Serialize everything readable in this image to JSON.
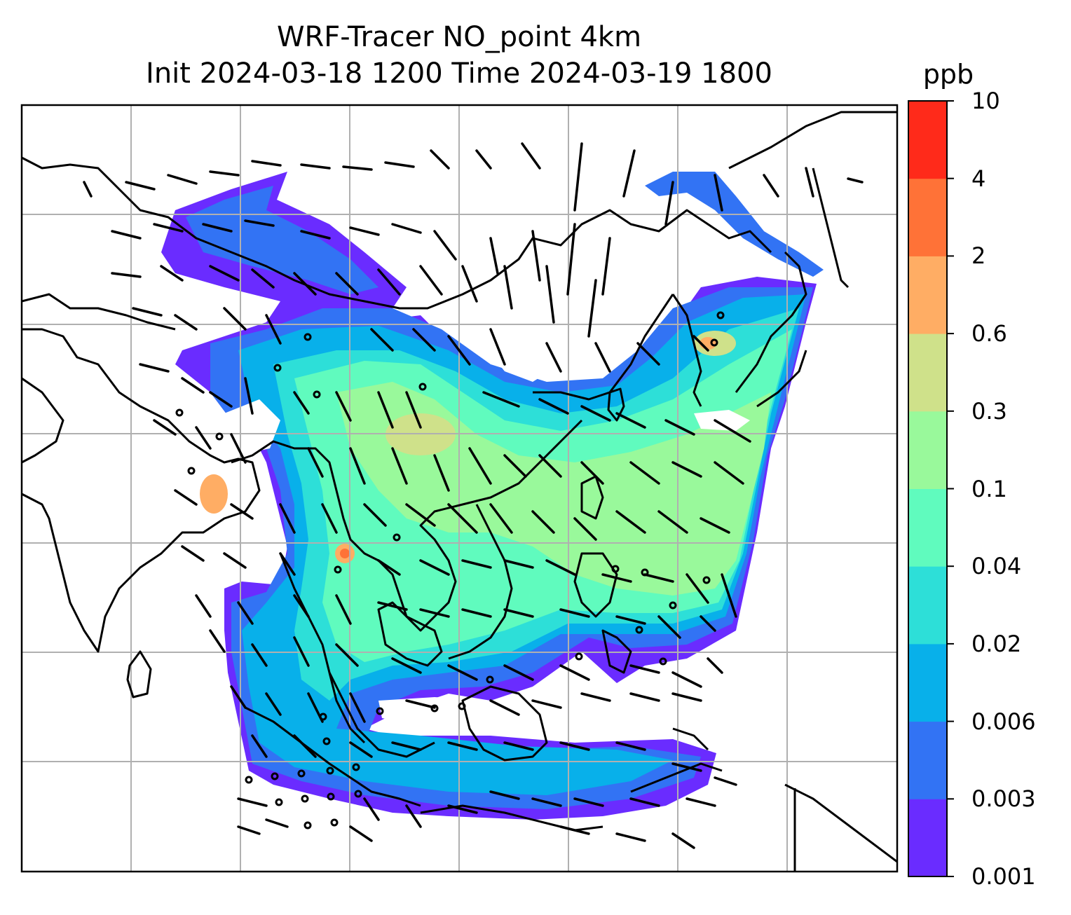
{
  "title": {
    "line1": "WRF-Tracer NO_point 4km",
    "line2": "Init 2024-03-18 1200 Time 2024-03-19 1800"
  },
  "colorbar": {
    "unit": "ppb",
    "levels": [
      "0.001",
      "0.003",
      "0.006",
      "0.02",
      "0.04",
      "0.1",
      "0.3",
      "0.6",
      "2",
      "4",
      "10"
    ],
    "colors": [
      "#6a2cff",
      "#3273f4",
      "#08b0ea",
      "#2ddfd8",
      "#60fbbe",
      "#99f99b",
      "#cfe18a",
      "#ffad64",
      "#ff7237",
      "#ff2a1a"
    ]
  },
  "map": {
    "features": [
      "coastlines",
      "country-borders",
      "lat-lon-gridlines",
      "wind-barbs",
      "tracer-concentration-fill"
    ],
    "gridline_color": "#b0b0b0",
    "coastline_color": "#000000"
  }
}
